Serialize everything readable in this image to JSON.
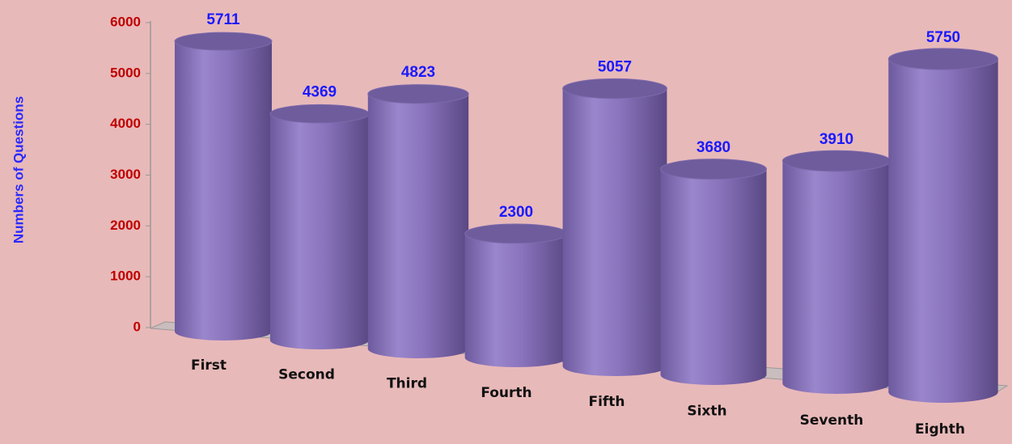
{
  "chart_data": {
    "type": "cylinder",
    "y_axis_label": "Numbers of Questions",
    "categories": [
      "First",
      "Second",
      "Third",
      "Fourth",
      "Fifth",
      "Sixth",
      "Seventh",
      "Eighth"
    ],
    "values": [
      5711,
      4369,
      4823,
      2300,
      5057,
      3680,
      3910,
      5750
    ],
    "color": "#8a74bd",
    "ylim": [
      0,
      6000
    ],
    "yticks": [
      0,
      1000,
      2000,
      3000,
      4000,
      5000,
      6000
    ],
    "grid": false
  }
}
